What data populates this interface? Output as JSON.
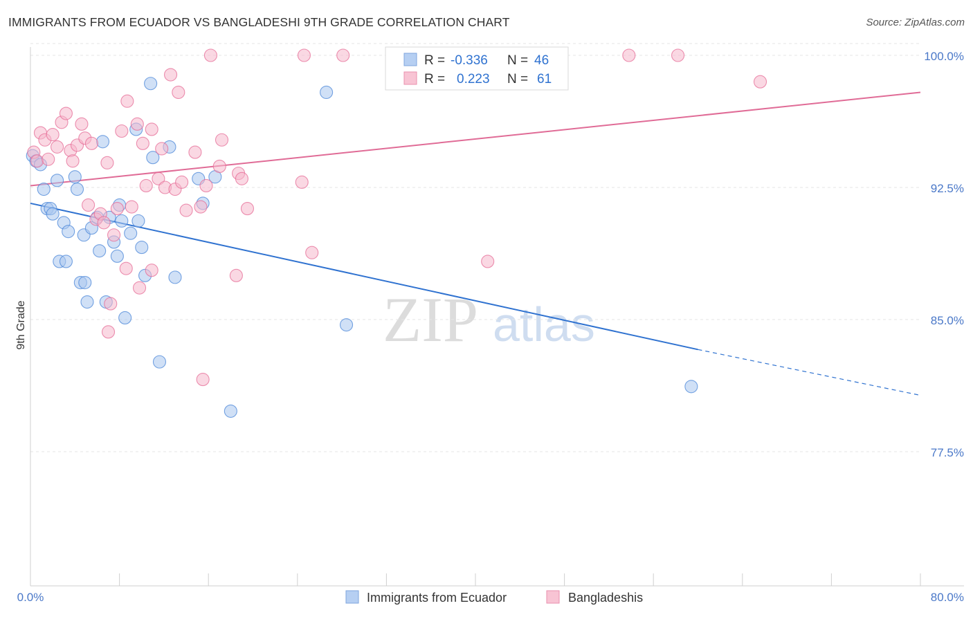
{
  "title": "IMMIGRANTS FROM ECUADOR VS BANGLADESHI 9TH GRADE CORRELATION CHART",
  "source": "Source: ZipAtlas.com",
  "watermark": {
    "zip": "ZIP",
    "atlas": "atlas"
  },
  "colors": {
    "blue": "#4a86d8",
    "blue_fill": "#a9c6ee",
    "blue_line": "#2f72d0",
    "pink": "#e56b95",
    "pink_fill": "#f6b8cc",
    "pink_line": "#e06b96",
    "tick_text": "#4a78c8"
  },
  "legend": {
    "r_label": "R =",
    "n_label": "N =",
    "rows": [
      {
        "series": "Immigrants from Ecuador",
        "r": "-0.336",
        "n": "46"
      },
      {
        "series": "Bangladeshis",
        "r": "0.223",
        "n": "61"
      }
    ]
  },
  "chart_data": {
    "type": "scatter",
    "title": "IMMIGRANTS FROM ECUADOR VS BANGLADESHI 9TH GRADE CORRELATION CHART",
    "xlabel": "",
    "ylabel": "9th Grade",
    "xlim": [
      0,
      80
    ],
    "ylim": [
      70.2,
      100.5
    ],
    "x_tick_labels": [
      "0.0%",
      "80.0%"
    ],
    "y_ticks": [
      77.5,
      85.0,
      92.5,
      100.0
    ],
    "y_tick_labels": [
      "77.5%",
      "85.0%",
      "92.5%",
      "100.0%"
    ],
    "grid": true,
    "series": [
      {
        "name": "Immigrants from Ecuador",
        "color": "#4a86d8",
        "points": [
          [
            0.2,
            94.3
          ],
          [
            0.5,
            94.0
          ],
          [
            0.9,
            93.8
          ],
          [
            1.2,
            92.4
          ],
          [
            1.5,
            91.3
          ],
          [
            1.8,
            91.3
          ],
          [
            2.0,
            91.0
          ],
          [
            2.4,
            92.9
          ],
          [
            3.0,
            90.5
          ],
          [
            3.4,
            90.0
          ],
          [
            2.6,
            88.3
          ],
          [
            3.2,
            88.3
          ],
          [
            4.0,
            93.1
          ],
          [
            4.2,
            92.4
          ],
          [
            4.5,
            87.1
          ],
          [
            4.9,
            87.1
          ],
          [
            4.8,
            89.8
          ],
          [
            5.1,
            86.0
          ],
          [
            5.5,
            90.2
          ],
          [
            6.0,
            90.8
          ],
          [
            6.2,
            88.9
          ],
          [
            6.5,
            95.1
          ],
          [
            6.8,
            86.0
          ],
          [
            7.1,
            90.8
          ],
          [
            7.5,
            89.4
          ],
          [
            7.8,
            88.6
          ],
          [
            8.0,
            91.5
          ],
          [
            8.2,
            90.6
          ],
          [
            8.5,
            85.1
          ],
          [
            9.0,
            89.9
          ],
          [
            9.5,
            95.8
          ],
          [
            9.7,
            90.6
          ],
          [
            10.0,
            89.1
          ],
          [
            10.3,
            87.5
          ],
          [
            10.8,
            98.4
          ],
          [
            11.0,
            94.2
          ],
          [
            11.6,
            82.6
          ],
          [
            12.5,
            94.8
          ],
          [
            13.0,
            87.4
          ],
          [
            15.1,
            93.0
          ],
          [
            15.5,
            91.6
          ],
          [
            16.6,
            93.1
          ],
          [
            18.0,
            79.8
          ],
          [
            26.6,
            97.9
          ],
          [
            28.4,
            84.7
          ],
          [
            59.4,
            81.2
          ]
        ],
        "trend": {
          "x0": 0,
          "y0": 91.6,
          "x1": 60,
          "y1": 83.3,
          "dashed_x1": 80,
          "dashed_y1": 80.7
        }
      },
      {
        "name": "Bangladeshis",
        "color": "#e56b95",
        "points": [
          [
            0.3,
            94.5
          ],
          [
            0.6,
            94.0
          ],
          [
            0.9,
            95.6
          ],
          [
            1.3,
            95.2
          ],
          [
            1.6,
            94.1
          ],
          [
            2.0,
            95.5
          ],
          [
            2.4,
            94.8
          ],
          [
            2.8,
            96.2
          ],
          [
            3.2,
            96.7
          ],
          [
            3.6,
            94.6
          ],
          [
            3.8,
            94.0
          ],
          [
            4.2,
            94.9
          ],
          [
            4.6,
            96.1
          ],
          [
            4.9,
            95.3
          ],
          [
            5.2,
            91.5
          ],
          [
            5.5,
            95.0
          ],
          [
            5.9,
            90.7
          ],
          [
            6.3,
            91.0
          ],
          [
            6.6,
            90.5
          ],
          [
            6.9,
            93.9
          ],
          [
            7.2,
            85.9
          ],
          [
            7.0,
            84.3
          ],
          [
            7.5,
            89.8
          ],
          [
            7.8,
            91.3
          ],
          [
            8.2,
            95.7
          ],
          [
            8.6,
            87.9
          ],
          [
            8.7,
            97.4
          ],
          [
            9.1,
            91.4
          ],
          [
            9.6,
            96.1
          ],
          [
            9.8,
            86.8
          ],
          [
            10.1,
            95.0
          ],
          [
            10.4,
            92.6
          ],
          [
            10.9,
            95.8
          ],
          [
            10.9,
            87.8
          ],
          [
            11.5,
            93.0
          ],
          [
            11.8,
            94.7
          ],
          [
            12.1,
            92.5
          ],
          [
            12.6,
            98.9
          ],
          [
            13.0,
            92.4
          ],
          [
            13.3,
            97.9
          ],
          [
            13.6,
            92.8
          ],
          [
            14.0,
            91.2
          ],
          [
            14.8,
            94.5
          ],
          [
            15.3,
            91.4
          ],
          [
            15.5,
            81.6
          ],
          [
            15.8,
            92.6
          ],
          [
            16.2,
            100.0
          ],
          [
            17.0,
            93.7
          ],
          [
            17.2,
            95.2
          ],
          [
            18.5,
            87.5
          ],
          [
            18.7,
            93.3
          ],
          [
            19.0,
            93.0
          ],
          [
            19.5,
            91.3
          ],
          [
            24.4,
            92.8
          ],
          [
            25.3,
            88.8
          ],
          [
            24.6,
            100.0
          ],
          [
            28.1,
            100.0
          ],
          [
            41.1,
            88.3
          ],
          [
            53.8,
            100.0
          ],
          [
            58.2,
            100.0
          ],
          [
            65.6,
            98.5
          ]
        ],
        "trend": {
          "x0": 0,
          "y0": 92.6,
          "x1": 80,
          "y1": 97.9
        }
      }
    ]
  }
}
